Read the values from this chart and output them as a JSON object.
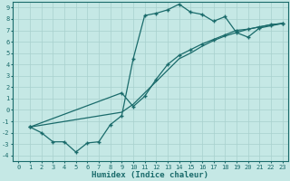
{
  "xlabel": "Humidex (Indice chaleur)",
  "bg_color": "#c5e8e5",
  "line_color": "#1a6b6b",
  "grid_color": "#a8d0ce",
  "xlim": [
    -0.5,
    23.5
  ],
  "ylim": [
    -4.5,
    9.5
  ],
  "xticks": [
    0,
    1,
    2,
    3,
    4,
    5,
    6,
    7,
    8,
    9,
    10,
    11,
    12,
    13,
    14,
    15,
    16,
    17,
    18,
    19,
    20,
    21,
    22,
    23
  ],
  "yticks": [
    -4,
    -3,
    -2,
    -1,
    0,
    1,
    2,
    3,
    4,
    5,
    6,
    7,
    8,
    9
  ],
  "line1_x": [
    1,
    2,
    3,
    4,
    5,
    6,
    7,
    8,
    9,
    10,
    11,
    12,
    13,
    14,
    15,
    16,
    17,
    18,
    19,
    20,
    21,
    22,
    23
  ],
  "line1_y": [
    -1.5,
    -2.0,
    -2.8,
    -2.8,
    -3.7,
    -2.9,
    -2.8,
    -1.3,
    -0.5,
    4.5,
    8.3,
    8.5,
    8.8,
    9.3,
    8.6,
    8.4,
    7.8,
    8.2,
    6.8,
    6.4,
    7.2,
    7.4,
    7.6
  ],
  "line2_x": [
    1,
    9,
    10,
    11,
    12,
    13,
    14,
    15,
    16,
    17,
    18,
    19,
    20,
    21,
    22,
    23
  ],
  "line2_y": [
    -1.5,
    1.5,
    0.3,
    1.2,
    2.7,
    4.0,
    4.8,
    5.3,
    5.8,
    6.2,
    6.6,
    7.0,
    7.1,
    7.3,
    7.5,
    7.6
  ],
  "line3_x": [
    1,
    9,
    10,
    11,
    12,
    13,
    14,
    15,
    16,
    17,
    18,
    19,
    20,
    21,
    22,
    23
  ],
  "line3_y": [
    -1.5,
    -0.2,
    0.5,
    1.5,
    2.5,
    3.5,
    4.5,
    5.0,
    5.6,
    6.1,
    6.5,
    6.8,
    7.1,
    7.3,
    7.5,
    7.6
  ],
  "marker_size": 2.5,
  "line_width": 0.9,
  "tick_fontsize": 5.0,
  "xlabel_fontsize": 6.5
}
